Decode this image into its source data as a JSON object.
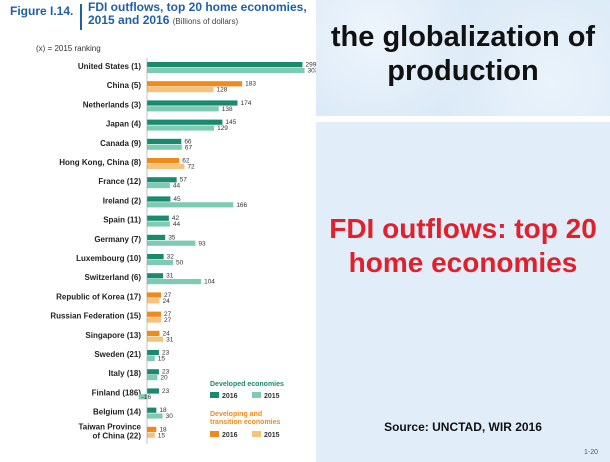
{
  "figure": {
    "label": "Figure I.14.",
    "title_line1": "FDI outflows, top 20 home economies,",
    "title_line2": "2015 and 2016",
    "units": "(Billions of dollars)",
    "ranking_note": "(x) = 2015 ranking"
  },
  "chart_data": {
    "type": "bar",
    "orientation": "horizontal",
    "categories": [
      "United States (1)",
      "China (5)",
      "Netherlands (3)",
      "Japan (4)",
      "Canada (9)",
      "Hong Kong, China (8)",
      "France (12)",
      "Ireland (2)",
      "Spain (11)",
      "Germany (7)",
      "Luxembourg (10)",
      "Switzerland (6)",
      "Republic of Korea (17)",
      "Russian Federation (15)",
      "Singapore (13)",
      "Sweden (21)",
      "Italy (18)",
      "Finland (186)",
      "Belgium (14)",
      "Taiwan Province of China (22)"
    ],
    "group": [
      "developed",
      "developing",
      "developed",
      "developed",
      "developed",
      "developing",
      "developed",
      "developed",
      "developed",
      "developed",
      "developed",
      "developed",
      "developing",
      "developing",
      "developing",
      "developed",
      "developed",
      "developed",
      "developed",
      "developing"
    ],
    "series": [
      {
        "name": "2016",
        "values": [
          299,
          183,
          174,
          145,
          66,
          62,
          57,
          45,
          42,
          35,
          32,
          31,
          27,
          27,
          24,
          23,
          23,
          23,
          18,
          18
        ]
      },
      {
        "name": "2015",
        "values": [
          303,
          128,
          138,
          129,
          67,
          72,
          44,
          166,
          44,
          93,
          50,
          104,
          24,
          27,
          31,
          15,
          20,
          -16,
          30,
          15
        ]
      }
    ],
    "colors": {
      "developed_2016": "#1a8a6e",
      "developed_2015": "#7ecbb3",
      "developing_2016": "#f08a1c",
      "developing_2015": "#f7c27a"
    },
    "legend": {
      "developed_title": "Developed economies",
      "developing_title": "Developing and transition economies",
      "label_2016": "2016",
      "label_2015": "2015",
      "position": "bottom-right"
    }
  },
  "slide": {
    "title": "the globalization of production",
    "heading": "FDI outflows: top 20 home economies",
    "source": "Source: UNCTAD, WIR 2016",
    "page_number": "1-20"
  }
}
